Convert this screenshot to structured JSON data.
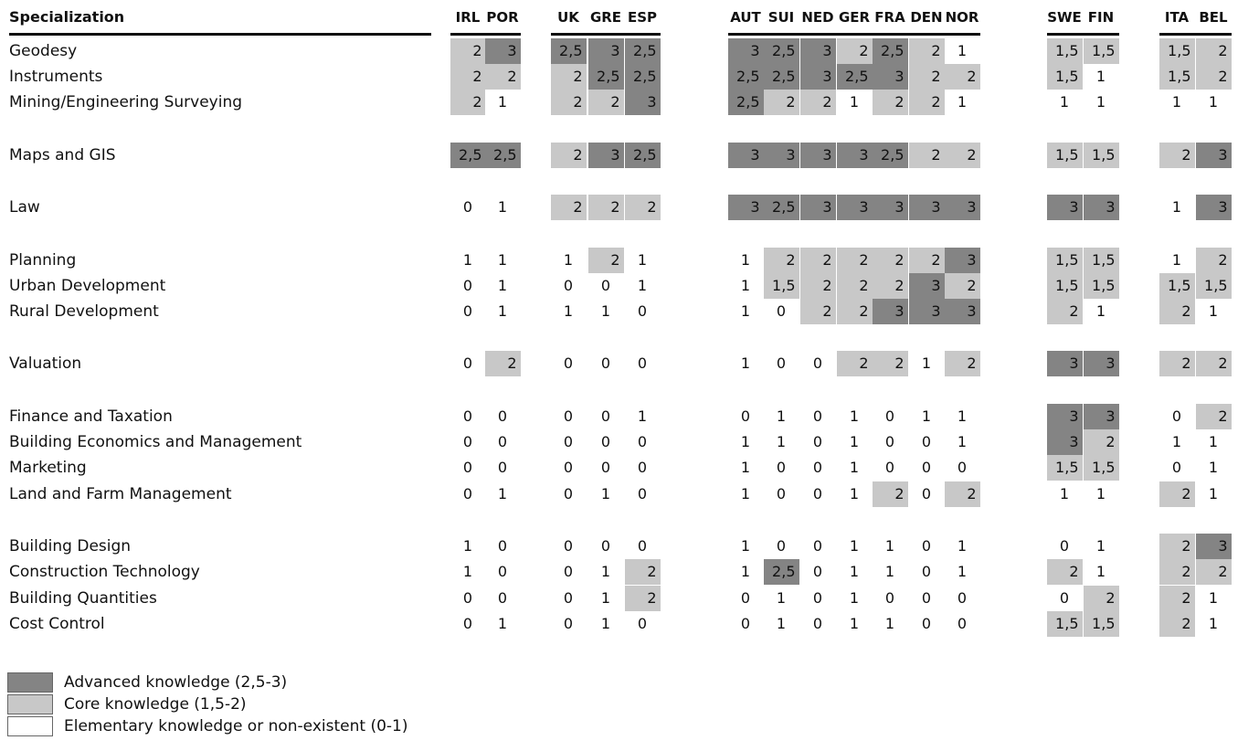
{
  "chart_data": {
    "type": "heatmap",
    "row_header": "Specialization",
    "columns": [
      "IRL",
      "POR",
      "UK",
      "GRE",
      "ESP",
      "AUT",
      "SUI",
      "NED",
      "GER",
      "FRA",
      "DEN",
      "NOR",
      "SWE",
      "FIN",
      "ITA",
      "BEL"
    ],
    "column_groups": [
      [
        "IRL",
        "POR"
      ],
      [
        "UK",
        "GRE",
        "ESP"
      ],
      [
        "AUT",
        "SUI",
        "NED",
        "GER",
        "FRA",
        "DEN",
        "NOR"
      ],
      [
        "SWE",
        "FIN"
      ],
      [
        "ITA",
        "BEL"
      ]
    ],
    "row_groups": [
      [
        "Geodesy",
        "Instruments",
        "Mining/Engineering Surveying"
      ],
      [
        "Maps and GIS"
      ],
      [
        "Law"
      ],
      [
        "Planning",
        "Urban Development",
        "Rural Development"
      ],
      [
        "Valuation"
      ],
      [
        "Finance and Taxation",
        "Building Economics and Management",
        "Marketing",
        "Land and Farm Management"
      ],
      [
        "Building Design",
        "Construction Technology",
        "Building Quantities",
        "Cost Control"
      ]
    ],
    "rows": [
      {
        "label": "Geodesy",
        "values": [
          "2",
          "3",
          "2,5",
          "3",
          "2,5",
          "3",
          "2,5",
          "3",
          "2",
          "2,5",
          "2",
          "1",
          "1,5",
          "1,5",
          "1,5",
          "2"
        ]
      },
      {
        "label": "Instruments",
        "values": [
          "2",
          "2",
          "2",
          "2,5",
          "2,5",
          "2,5",
          "2,5",
          "3",
          "2,5",
          "3",
          "2",
          "2",
          "1,5",
          "1",
          "1,5",
          "2"
        ]
      },
      {
        "label": "Mining/Engineering Surveying",
        "values": [
          "2",
          "1",
          "2",
          "2",
          "3",
          "2,5",
          "2",
          "2",
          "1",
          "2",
          "2",
          "1",
          "1",
          "1",
          "1",
          "1"
        ]
      },
      {
        "label": "Maps and GIS",
        "values": [
          "2,5",
          "2,5",
          "2",
          "3",
          "2,5",
          "3",
          "3",
          "3",
          "3",
          "2,5",
          "2",
          "2",
          "1,5",
          "1,5",
          "2",
          "3"
        ]
      },
      {
        "label": "Law",
        "values": [
          "0",
          "1",
          "2",
          "2",
          "2",
          "3",
          "2,5",
          "3",
          "3",
          "3",
          "3",
          "3",
          "3",
          "3",
          "1",
          "3"
        ]
      },
      {
        "label": "Planning",
        "values": [
          "1",
          "1",
          "1",
          "2",
          "1",
          "1",
          "2",
          "2",
          "2",
          "2",
          "2",
          "3",
          "1,5",
          "1,5",
          "1",
          "2"
        ]
      },
      {
        "label": "Urban Development",
        "values": [
          "0",
          "1",
          "0",
          "0",
          "1",
          "1",
          "1,5",
          "2",
          "2",
          "2",
          "3",
          "2",
          "1,5",
          "1,5",
          "1,5",
          "1,5"
        ]
      },
      {
        "label": "Rural Development",
        "values": [
          "0",
          "1",
          "1",
          "1",
          "0",
          "1",
          "0",
          "2",
          "2",
          "3",
          "3",
          "3",
          "2",
          "1",
          "2",
          "1"
        ]
      },
      {
        "label": "Valuation",
        "values": [
          "0",
          "2",
          "0",
          "0",
          "0",
          "1",
          "0",
          "0",
          "2",
          "2",
          "1",
          "2",
          "3",
          "3",
          "2",
          "2"
        ]
      },
      {
        "label": "Finance and Taxation",
        "values": [
          "0",
          "0",
          "0",
          "0",
          "1",
          "0",
          "1",
          "0",
          "1",
          "0",
          "1",
          "1",
          "3",
          "3",
          "0",
          "2"
        ]
      },
      {
        "label": "Building Economics and Management",
        "values": [
          "0",
          "0",
          "0",
          "0",
          "0",
          "1",
          "1",
          "0",
          "1",
          "0",
          "0",
          "1",
          "3",
          "2",
          "1",
          "1"
        ]
      },
      {
        "label": "Marketing",
        "values": [
          "0",
          "0",
          "0",
          "0",
          "0",
          "1",
          "0",
          "0",
          "1",
          "0",
          "0",
          "0",
          "1,5",
          "1,5",
          "0",
          "1"
        ]
      },
      {
        "label": "Land and Farm Management",
        "values": [
          "0",
          "1",
          "0",
          "1",
          "0",
          "1",
          "0",
          "0",
          "1",
          "2",
          "0",
          "2",
          "1",
          "1",
          "2",
          "1"
        ]
      },
      {
        "label": "Building Design",
        "values": [
          "1",
          "0",
          "0",
          "0",
          "0",
          "1",
          "0",
          "0",
          "1",
          "1",
          "0",
          "1",
          "0",
          "1",
          "2",
          "3"
        ]
      },
      {
        "label": "Construction Technology",
        "values": [
          "1",
          "0",
          "0",
          "1",
          "2",
          "1",
          "2,5",
          "0",
          "1",
          "1",
          "0",
          "1",
          "2",
          "1",
          "2",
          "2"
        ]
      },
      {
        "label": "Building Quantities",
        "values": [
          "0",
          "0",
          "0",
          "1",
          "2",
          "0",
          "1",
          "0",
          "1",
          "0",
          "0",
          "0",
          "0",
          "2",
          "2",
          "1"
        ]
      },
      {
        "label": "Cost Control",
        "values": [
          "0",
          "1",
          "0",
          "1",
          "0",
          "0",
          "1",
          "0",
          "1",
          "1",
          "0",
          "0",
          "1,5",
          "1,5",
          "2",
          "1"
        ]
      }
    ],
    "legend": [
      {
        "label": "Advanced knowledge (2,5-3)",
        "color": "#848484",
        "min": 2.5,
        "max": 3
      },
      {
        "label": "Core knowledge (1,5-2)",
        "color": "#c8c8c8",
        "min": 1.5,
        "max": 2
      },
      {
        "label": "Elementary knowledge or non-existent (0-1)",
        "color": "#ffffff",
        "min": 0,
        "max": 1
      }
    ]
  }
}
